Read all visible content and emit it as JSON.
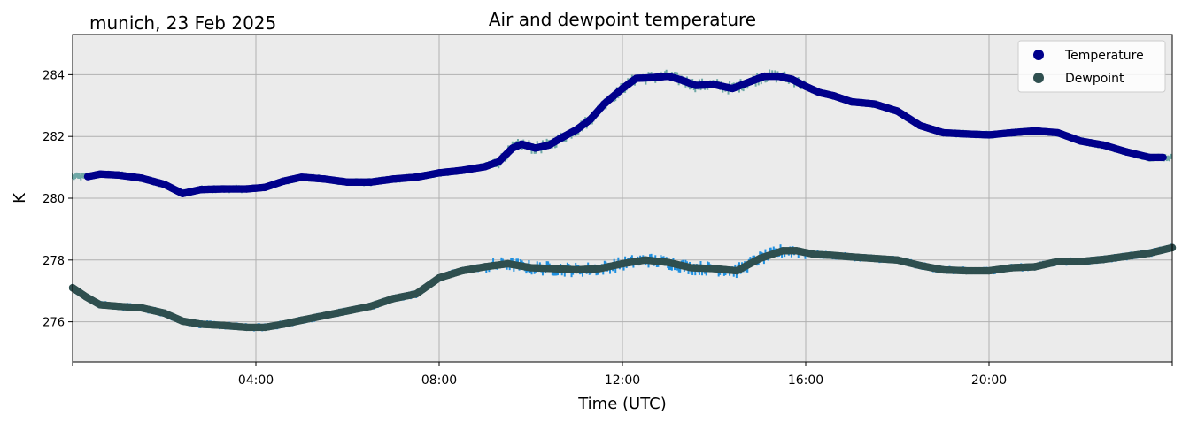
{
  "chart_data": {
    "type": "scatter",
    "title": "Air and dewpoint temperature",
    "subtitle": "munich, 23 Feb 2025",
    "xlabel": "Time (UTC)",
    "ylabel": "K",
    "x_unit": "hours (UTC)",
    "xlim": [
      0,
      24
    ],
    "ylim": [
      274.7,
      285.3
    ],
    "xticks": [
      {
        "value": 4,
        "label": "04:00"
      },
      {
        "value": 8,
        "label": "08:00"
      },
      {
        "value": 12,
        "label": "12:00"
      },
      {
        "value": 16,
        "label": "16:00"
      },
      {
        "value": 20,
        "label": "20:00"
      }
    ],
    "yticks": [
      {
        "value": 276,
        "label": "276"
      },
      {
        "value": 278,
        "label": "278"
      },
      {
        "value": 280,
        "label": "280"
      },
      {
        "value": 282,
        "label": "282"
      },
      {
        "value": 284,
        "label": "284"
      }
    ],
    "grid": true,
    "legend_position": "top-right",
    "background_color": "#ebebeb",
    "series": [
      {
        "name": "Temperature",
        "color": "#00008b",
        "raw_color": "#6fa8a6",
        "x": [
          0.33,
          0.6,
          1.0,
          1.5,
          2.0,
          2.4,
          2.8,
          3.3,
          3.8,
          4.2,
          4.6,
          5.0,
          5.5,
          6.0,
          6.5,
          7.0,
          7.5,
          8.0,
          8.5,
          9.0,
          9.3,
          9.6,
          9.8,
          10.1,
          10.4,
          10.7,
          11.0,
          11.3,
          11.6,
          12.0,
          12.3,
          12.6,
          13.0,
          13.3,
          13.6,
          14.0,
          14.4,
          14.8,
          15.1,
          15.4,
          15.7,
          16.0,
          16.3,
          16.6,
          17.0,
          17.5,
          18.0,
          18.5,
          19.0,
          19.5,
          20.0,
          20.5,
          21.0,
          21.5,
          22.0,
          22.5,
          23.0,
          23.5,
          23.8
        ],
        "y": [
          280.7,
          280.78,
          280.75,
          280.65,
          280.45,
          280.15,
          280.28,
          280.3,
          280.3,
          280.35,
          280.55,
          280.68,
          280.62,
          280.52,
          280.52,
          280.62,
          280.68,
          280.82,
          280.9,
          281.02,
          281.18,
          281.62,
          281.75,
          281.62,
          281.72,
          281.98,
          282.22,
          282.55,
          283.05,
          283.55,
          283.88,
          283.9,
          283.95,
          283.82,
          283.65,
          283.68,
          283.55,
          283.78,
          283.95,
          283.95,
          283.85,
          283.62,
          283.42,
          283.32,
          283.12,
          283.05,
          282.82,
          282.35,
          282.12,
          282.08,
          282.05,
          282.12,
          282.18,
          282.12,
          281.85,
          281.72,
          281.5,
          281.32,
          281.32
        ]
      },
      {
        "name": "Dewpoint",
        "color": "#2f4f4f",
        "raw_color": "#1e90e0",
        "x": [
          0.0,
          0.3,
          0.6,
          1.0,
          1.5,
          2.0,
          2.4,
          2.8,
          3.3,
          3.8,
          4.2,
          4.6,
          5.0,
          5.5,
          6.0,
          6.5,
          7.0,
          7.5,
          8.0,
          8.5,
          9.0,
          9.5,
          10.0,
          10.5,
          11.0,
          11.5,
          12.0,
          12.5,
          13.0,
          13.5,
          14.0,
          14.5,
          15.0,
          15.5,
          15.8,
          16.2,
          16.6,
          17.0,
          17.5,
          18.0,
          18.5,
          19.0,
          19.5,
          20.0,
          20.5,
          21.0,
          21.5,
          22.0,
          22.5,
          23.0,
          23.5,
          24.0
        ],
        "y": [
          277.1,
          276.8,
          276.55,
          276.5,
          276.45,
          276.28,
          276.02,
          275.92,
          275.88,
          275.82,
          275.82,
          275.92,
          276.05,
          276.2,
          276.35,
          276.5,
          276.75,
          276.9,
          277.42,
          277.65,
          277.78,
          277.88,
          277.75,
          277.72,
          277.68,
          277.72,
          277.88,
          278.0,
          277.92,
          277.75,
          277.72,
          277.65,
          278.05,
          278.3,
          278.3,
          278.18,
          278.15,
          278.1,
          278.05,
          278.0,
          277.82,
          277.68,
          277.65,
          277.65,
          277.75,
          277.78,
          277.95,
          277.95,
          278.02,
          278.12,
          278.22,
          278.4
        ]
      }
    ]
  }
}
